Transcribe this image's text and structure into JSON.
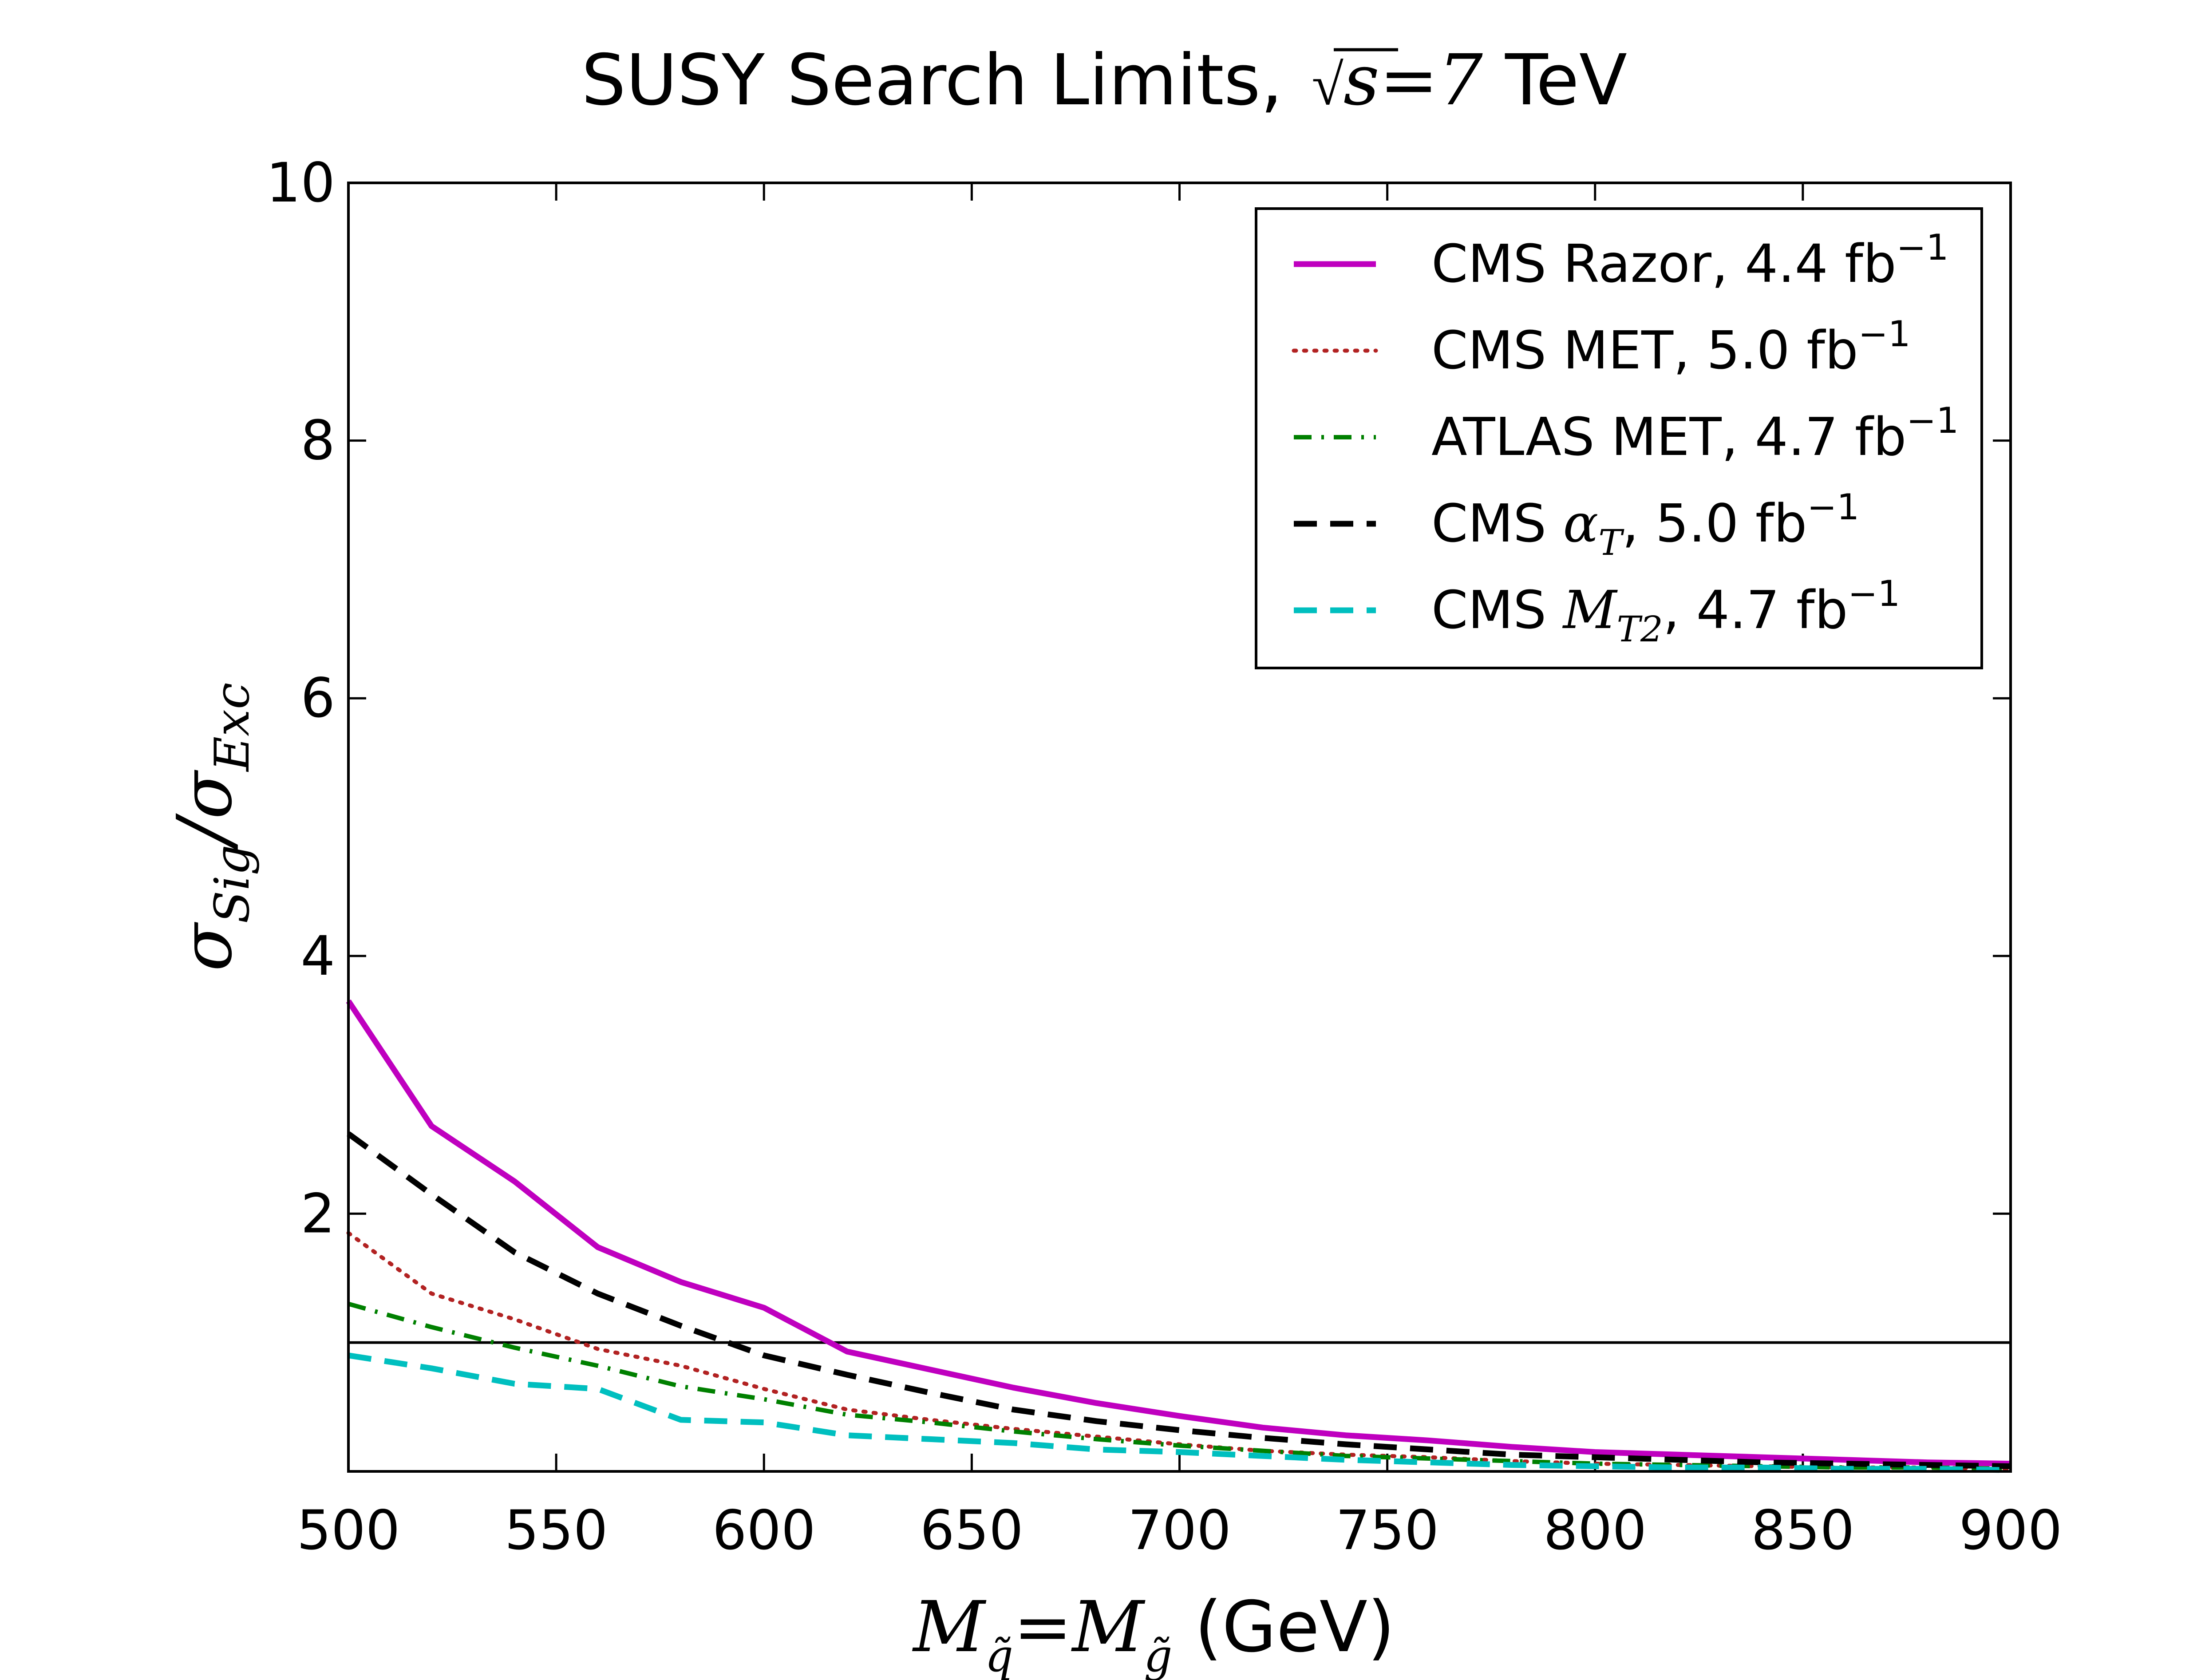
{
  "chart_data": {
    "type": "line",
    "title": {
      "prefix": "SUSY Search Limits, ",
      "sqrt_var": "s",
      "equals": "=",
      "energy_value": "7",
      "energy_unit": " TeV"
    },
    "xlabel": {
      "var1": "M",
      "sub1": "q̃",
      "equals": "=",
      "var2": "M",
      "sub2": "g̃",
      "unit": " (GeV)"
    },
    "ylabel": {
      "sigma1": "σ",
      "sub1": "Sig",
      "slash": "/",
      "sigma2": "σ",
      "sub2": "Exc"
    },
    "xlim": [
      500,
      900
    ],
    "ylim": [
      0,
      10
    ],
    "x_ticks": [
      "500",
      "550",
      "600",
      "650",
      "700",
      "750",
      "800",
      "850",
      "900"
    ],
    "y_ticks": [
      "2",
      "4",
      "6",
      "8",
      "10"
    ],
    "reference_line": 1.0,
    "legend_position": "top-right",
    "x": [
      500,
      520,
      540,
      560,
      580,
      600,
      620,
      640,
      660,
      680,
      700,
      720,
      740,
      760,
      780,
      800,
      820,
      840,
      860,
      880,
      900
    ],
    "series": [
      {
        "label_main": "CMS Razor, 4.4 fb",
        "label_math": "",
        "label_sub": "",
        "label_rest": "",
        "label_sup": "−1",
        "color": "#bf00bf",
        "style": "solid",
        "values": [
          3.65,
          2.68,
          2.25,
          1.74,
          1.47,
          1.27,
          0.93,
          0.79,
          0.65,
          0.53,
          0.43,
          0.34,
          0.28,
          0.24,
          0.19,
          0.15,
          0.13,
          0.11,
          0.09,
          0.07,
          0.06
        ]
      },
      {
        "label_main": "CMS MET, 5.0 fb",
        "label_math": "",
        "label_sub": "",
        "label_rest": "",
        "label_sup": "−1",
        "color": "#b22222",
        "style": "dotted",
        "values": [
          1.85,
          1.38,
          1.18,
          0.95,
          0.82,
          0.64,
          0.48,
          0.4,
          0.33,
          0.27,
          0.21,
          0.16,
          0.13,
          0.11,
          0.08,
          0.06,
          0.05,
          0.04,
          0.03,
          0.03,
          0.02
        ]
      },
      {
        "label_main": "ATLAS MET, 4.7 fb",
        "label_math": "",
        "label_sub": "",
        "label_rest": "",
        "label_sup": "−1",
        "color": "#008000",
        "style": "dashdot",
        "values": [
          1.3,
          1.12,
          0.96,
          0.82,
          0.66,
          0.56,
          0.44,
          0.38,
          0.31,
          0.25,
          0.2,
          0.16,
          0.12,
          0.1,
          0.08,
          0.06,
          0.05,
          0.04,
          0.03,
          0.03,
          0.02
        ]
      },
      {
        "label_main": "CMS ",
        "label_math": "α",
        "label_sub": "T",
        "label_rest": ", 5.0 fb",
        "label_sup": "−1",
        "color": "#000000",
        "style": "dashed",
        "values": [
          2.62,
          2.15,
          1.7,
          1.38,
          1.13,
          0.9,
          0.75,
          0.61,
          0.48,
          0.39,
          0.32,
          0.26,
          0.21,
          0.17,
          0.13,
          0.11,
          0.09,
          0.07,
          0.06,
          0.05,
          0.04
        ]
      },
      {
        "label_main": "CMS ",
        "label_math": "M",
        "label_sub": "T2",
        "label_rest": ", 4.7 fb",
        "label_sup": "−1",
        "color": "#00bfbf",
        "style": "dashed",
        "values": [
          0.9,
          0.8,
          0.68,
          0.64,
          0.4,
          0.38,
          0.28,
          0.25,
          0.22,
          0.17,
          0.15,
          0.12,
          0.09,
          0.07,
          0.05,
          0.04,
          0.03,
          0.03,
          0.02,
          0.02,
          0.01
        ]
      }
    ]
  }
}
